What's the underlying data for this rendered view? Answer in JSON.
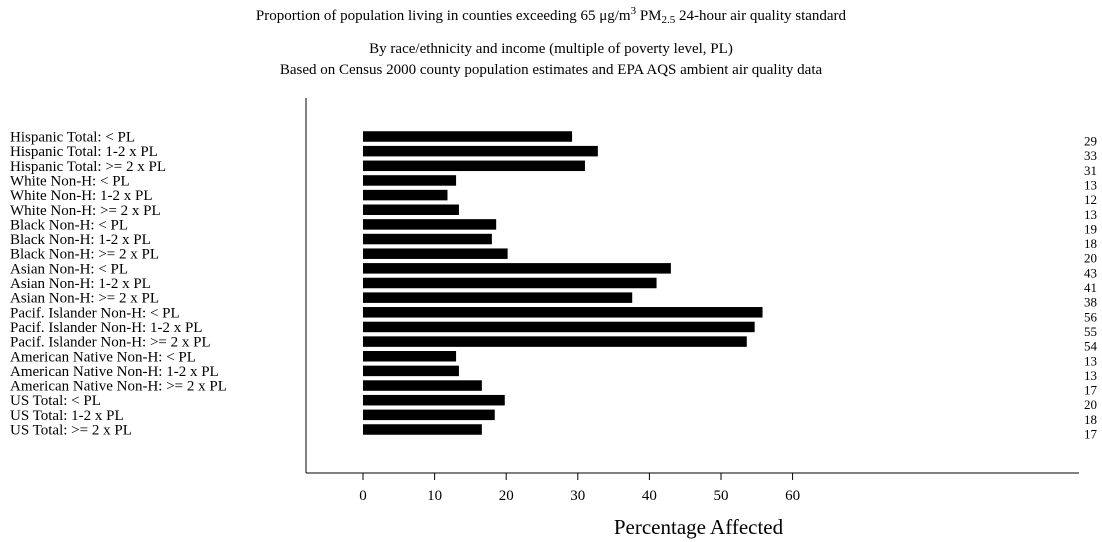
{
  "chart_data": {
    "type": "bar",
    "orientation": "horizontal",
    "title": {
      "line1_pre": "Proportion of population living in counties exceeding 65 μg/m",
      "line1_sup": "3",
      "line1_mid": " PM",
      "line1_sub": "2.5",
      "line1_post": " 24-hour air quality standard"
    },
    "subtitle": [
      "By race/ethnicity and income (multiple of poverty level, PL)",
      "Based on Census 2000 county population estimates and EPA AQS ambient air quality data"
    ],
    "xlabel": "Percentage Affected",
    "ylabel": "",
    "xlim": [
      -8.5,
      66
    ],
    "xticks": [
      0,
      10,
      20,
      30,
      40,
      50,
      60
    ],
    "categories": [
      "Hispanic Total: < PL",
      "Hispanic Total: 1-2 x PL",
      "Hispanic Total: >= 2 x PL",
      "White Non-H: < PL",
      "White Non-H: 1-2 x PL",
      "White Non-H: >= 2 x PL",
      "Black Non-H: < PL",
      "Black Non-H: 1-2 x PL",
      "Black Non-H: >= 2 x PL",
      "Asian Non-H: < PL",
      "Asian Non-H: 1-2 x PL",
      "Asian Non-H: >= 2 x PL",
      "Pacif. Islander Non-H: < PL",
      "Pacif. Islander Non-H: 1-2 x PL",
      "Pacif. Islander Non-H: >= 2 x PL",
      "American Native Non-H: < PL",
      "American Native Non-H: 1-2 x PL",
      "American Native Non-H: >= 2 x PL",
      "US Total: < PL",
      "US Total: 1-2 x PL",
      "US Total: >= 2 x PL"
    ],
    "values": [
      29.2,
      32.8,
      31.0,
      13.0,
      11.8,
      13.4,
      18.6,
      18.0,
      20.2,
      43.0,
      41.0,
      37.6,
      55.8,
      54.7,
      53.6,
      13.0,
      13.4,
      16.6,
      19.8,
      18.4,
      16.6
    ],
    "value_labels": [
      "29",
      "33",
      "31",
      "13",
      "12",
      "13",
      "19",
      "18",
      "20",
      "43",
      "41",
      "38",
      "56",
      "55",
      "54",
      "13",
      "13",
      "17",
      "20",
      "18",
      "17"
    ],
    "bar_color": "#000000",
    "grid": false,
    "legend": "none"
  }
}
